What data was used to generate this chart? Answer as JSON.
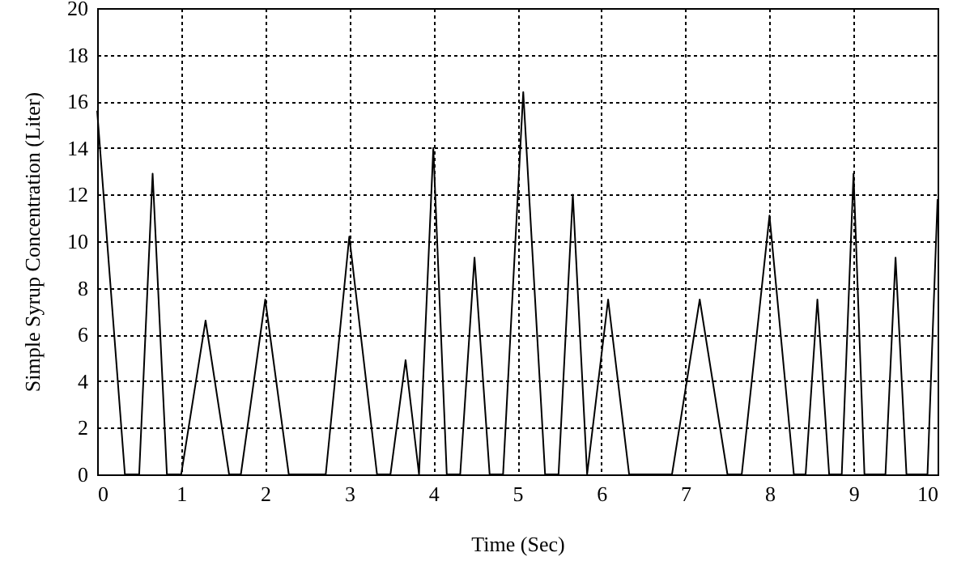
{
  "chart_data": {
    "type": "line",
    "xlabel": "Time (Sec)",
    "ylabel": "Simple Syrup Concentration (Liter)",
    "x": [
      0,
      0.33,
      0.5,
      0.66,
      0.83,
      1.0,
      1.29,
      1.57,
      1.71,
      2.0,
      2.28,
      2.72,
      3.0,
      3.33,
      3.49,
      3.67,
      3.83,
      4.0,
      4.16,
      4.32,
      4.49,
      4.67,
      4.83,
      5.07,
      5.33,
      5.49,
      5.66,
      5.83,
      6.08,
      6.33,
      6.84,
      7.17,
      7.5,
      7.67,
      8.0,
      8.29,
      8.43,
      8.57,
      8.71,
      8.86,
      9.0,
      9.13,
      9.38,
      9.5,
      9.63,
      9.88,
      10
    ],
    "series": [
      {
        "color": "#000000",
        "values": [
          15.6,
          0,
          0,
          12.9,
          0,
          0,
          6.6,
          0,
          0,
          7.5,
          0,
          0,
          10.2,
          0,
          0,
          4.9,
          0,
          14,
          0,
          0,
          9.3,
          0,
          0,
          16.4,
          0,
          0,
          12,
          0,
          7.5,
          0,
          0,
          7.5,
          0,
          0,
          11.1,
          0,
          0,
          7.5,
          0,
          0,
          12.9,
          0,
          0,
          9.3,
          0,
          0,
          11.8
        ]
      }
    ],
    "xlim": [
      0,
      10
    ],
    "xticks": [
      0,
      1,
      2,
      3,
      4,
      5,
      6,
      7,
      8,
      9,
      10
    ],
    "ylim": [
      0,
      20
    ],
    "yticks": [
      0,
      2,
      4,
      6,
      8,
      10,
      12,
      14,
      16,
      18,
      20
    ],
    "grid": true,
    "line_style": "solid",
    "marker": "none"
  }
}
